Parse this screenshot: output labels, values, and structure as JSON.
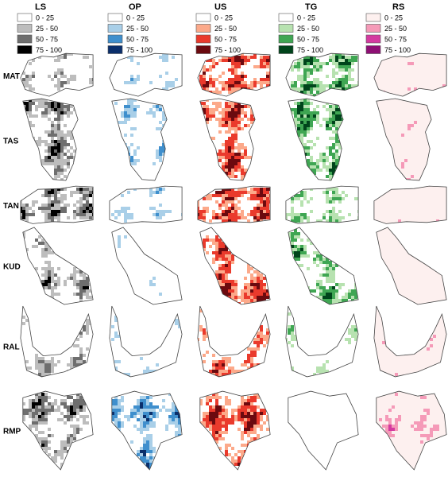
{
  "columns": [
    {
      "name": "LS",
      "colors": [
        "#ffffff",
        "#bdbdbd",
        "#6e6e6e",
        "#000000"
      ]
    },
    {
      "name": "OP",
      "colors": [
        "#ffffff",
        "#a9cfe8",
        "#3f8fcd",
        "#0b2f6b"
      ]
    },
    {
      "name": "US",
      "colors": [
        "#ffffff",
        "#fca98a",
        "#ea3a2c",
        "#6b0a0f"
      ]
    },
    {
      "name": "TG",
      "colors": [
        "#ffffff",
        "#b7e2b0",
        "#3fa653",
        "#00441b"
      ]
    },
    {
      "name": "RS",
      "colors": [
        "#fdf0ef",
        "#f59ab8",
        "#d43aa0",
        "#8e0f74"
      ]
    }
  ],
  "legend_ranges": [
    "0 - 25",
    "25 - 50",
    "50 - 75",
    "75 - 100"
  ],
  "rows": [
    {
      "label": "MAT",
      "shape": "wide"
    },
    {
      "label": "TAS",
      "shape": "tall"
    },
    {
      "label": "TAN",
      "shape": "strip"
    },
    {
      "label": "KUD",
      "shape": "diag"
    },
    {
      "label": "RAL",
      "shape": "bowl"
    },
    {
      "label": "RMP",
      "shape": "block"
    }
  ],
  "coverage": {
    "MAT": [
      0.45,
      0.35,
      0.85,
      0.8,
      0.2
    ],
    "TAS": [
      0.8,
      0.45,
      0.85,
      0.8,
      0.25
    ],
    "TAN": [
      0.85,
      0.4,
      0.9,
      0.55,
      0.2
    ],
    "KUD": [
      0.6,
      0.25,
      0.85,
      0.75,
      0.05
    ],
    "RAL": [
      0.55,
      0.35,
      0.8,
      0.45,
      0.3
    ],
    "RMP": [
      0.75,
      0.7,
      0.85,
      0.15,
      0.4
    ]
  }
}
